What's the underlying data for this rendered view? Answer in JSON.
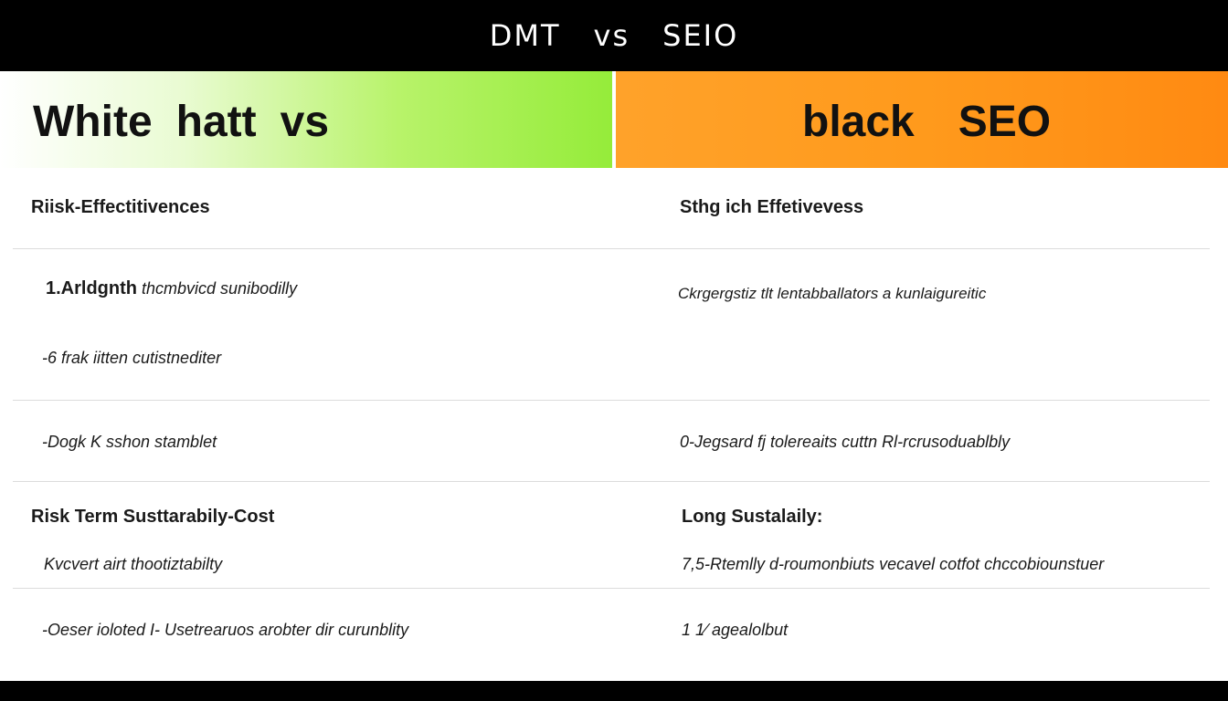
{
  "banner": {
    "left_word": "DMT",
    "mid_word": "vs",
    "right_word": "SEIO"
  },
  "header": {
    "left_title_a": "White",
    "left_title_b": "hatt",
    "left_title_c": "vs",
    "right_title_a": "black",
    "right_title_b": "SEO"
  },
  "sections": {
    "left_heading_1": "Riisk-Effectitivences",
    "right_heading_1": "Sthg ich Effetivevess",
    "left_heading_2": "Risk Term Susttarabily-Cost",
    "right_heading_2": "Long Sustalaily:"
  },
  "rows": {
    "left_1_bold": "1.Arldgnth",
    "left_1_rest": "thcmbvicd sunibodilly",
    "right_1": "Ckrgergstiz tlt lentabballators a kunlaigureitic",
    "left_2": "-6 frak iitten cutistnediter",
    "left_3": "-Dogk K sshon stamblet",
    "right_3": "0-Jegsard fj tolereaits cuttn Rl-rcrusoduablbly",
    "left_4": "Kvcvert airt thootiztabilty",
    "right_4": "7,5-Rtemlly d-roumonbiuts vecavel cotfot chccobiounstuer",
    "left_5": "-Oeser ioloted I- Usetrearuos arobter dir curunblity",
    "right_5": "1 1⁄ agealolbut"
  },
  "colors": {
    "green_accent": "#95ec3a",
    "orange_accent": "#ff8a12",
    "bar": "#000000"
  }
}
